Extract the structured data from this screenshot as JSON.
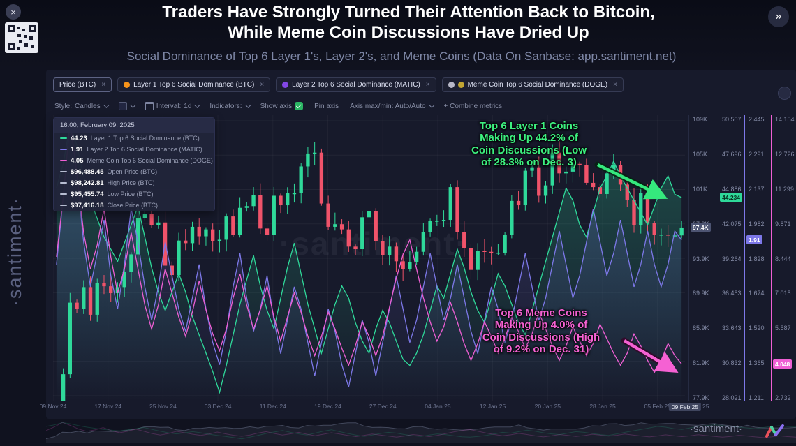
{
  "header": {
    "title": "Traders Have Strongly Turned Their Attention Back to Bitcoin, While Meme Coin Discussions Have Dried Up",
    "subtitle": "Social Dominance of Top 6 Layer 1's, Layer 2's, and Meme Coins (Data On Sanbase: app.santiment.net)",
    "close_label": "×",
    "next_label": "»"
  },
  "watermark": {
    "left": "·santiment·",
    "center": "·santiment·",
    "bottom": "·santiment·"
  },
  "tab_close_label": "×",
  "tabs": [
    {
      "label": "Price (BTC)",
      "badges": []
    },
    {
      "label": "Layer 1 Top 6 Social Dominance (BTC)",
      "badges": [
        "#f7931a"
      ]
    },
    {
      "label": "Layer 2 Top 6 Social Dominance (MATIC)",
      "badges": [
        "#8247e5"
      ]
    },
    {
      "label": "Meme Coin Top 6 Social Dominance (DOGE)",
      "badges": [
        "#b8b8c8",
        "#c2a633"
      ]
    }
  ],
  "toolbar": {
    "style_label": "Style:",
    "style_value": "Candles",
    "interval_label": "Interval:",
    "interval_value": "1d",
    "indicators_label": "Indicators:",
    "show_axis_label": "Show axis",
    "pin_axis_label": "Pin axis",
    "axis_maxmin_label": "Axis max/min: Auto/Auto",
    "combine_label": "+ Combine metrics"
  },
  "legend": {
    "timestamp": "16:00, February 09, 2025",
    "rows": [
      {
        "value": "44.23",
        "label": "Layer 1 Top 6 Social Dominance (BTC)",
        "color": "#2fd99a"
      },
      {
        "value": "1.91",
        "label": "Layer 2 Top 6 Social Dominance (MATIC)",
        "color": "#7d78e8"
      },
      {
        "value": "4.05",
        "label": "Meme Coin Top 6 Social Dominance (DOGE)",
        "color": "#ef5fd4"
      },
      {
        "value": "$96,488.45",
        "label": "Open Price (BTC)",
        "color": "#b7bdd1"
      },
      {
        "value": "$98,242.81",
        "label": "High Price (BTC)",
        "color": "#b7bdd1"
      },
      {
        "value": "$95,455.74",
        "label": "Low Price (BTC)",
        "color": "#b7bdd1"
      },
      {
        "value": "$97,416.18",
        "label": "Close Price (BTC)",
        "color": "#b7bdd1"
      }
    ]
  },
  "annotations": [
    {
      "text": "Top 6 Layer 1 Coins\nMaking Up 44.2% of\nCoin Discussions (Low\nof 28.3% on Dec. 3)",
      "color": "#3df07f"
    },
    {
      "text": "Top 6 Meme Coins\nMaking Up 4.0% of\nCoin Discussions (High\nof 9.2% on Dec. 31)",
      "color": "#f561d3"
    }
  ],
  "chart_data": {
    "type": "candlestick+line",
    "x_tick_labels": [
      "09 Nov 24",
      "17 Nov 24",
      "25 Nov 24",
      "03 Dec 24",
      "11 Dec 24",
      "19 Dec 24",
      "27 Dec 24",
      "04 Jan 25",
      "12 Jan 25",
      "20 Jan 25",
      "28 Jan 25",
      "05 Feb 25"
    ],
    "highlighted_x_label": "09 Feb 25",
    "extra_x_label": "25",
    "axes": [
      {
        "name": "price",
        "color": "#848ba6",
        "min": 77.9,
        "max": 109.8,
        "ticks": [
          "109K",
          "105K",
          "101K",
          "97.9K",
          "93.9K",
          "89.9K",
          "85.9K",
          "81.9K",
          "77.9K"
        ],
        "badge": "97.4K",
        "badge_value": 97.416,
        "badge_bg": "#4d5472",
        "badge_fg": "#ffffff"
      },
      {
        "name": "layer1",
        "color": "#2fd99a",
        "min": 28.021,
        "max": 50.507,
        "ticks": [
          "50.507",
          "47.696",
          "44.886",
          "42.075",
          "39.264",
          "36.453",
          "33.643",
          "30.832",
          "28.021"
        ],
        "badge": "44.234",
        "badge_value": 44.234,
        "badge_bg": "#2fd99a",
        "badge_fg": "#07301f"
      },
      {
        "name": "layer2",
        "color": "#7d78e8",
        "min": 1.211,
        "max": 2.445,
        "ticks": [
          "2.445",
          "2.291",
          "2.137",
          "1.982",
          "1.828",
          "1.674",
          "1.520",
          "1.365",
          "1.211"
        ],
        "badge": "1.91",
        "badge_value": 1.91,
        "badge_bg": "#7d78e8",
        "badge_fg": "#ffffff"
      },
      {
        "name": "meme",
        "color": "#ef5fd4",
        "min": 2.732,
        "max": 14.154,
        "ticks": [
          "14.154",
          "12.726",
          "11.299",
          "9.871",
          "8.444",
          "7.015",
          "5.587",
          "4.160",
          "2.732"
        ],
        "badge": "4.048",
        "badge_value": 4.048,
        "badge_bg": "#ef5fd4",
        "badge_fg": "#ffffff"
      }
    ],
    "series": [
      {
        "name": "Price (BTC)",
        "type": "candle",
        "axis": "price",
        "up_color": "#2fd99a",
        "down_color": "#f0536a",
        "closes": [
          76.7,
          80.4,
          88.7,
          88.0,
          90.5,
          87.3,
          91.0,
          90.6,
          89.8,
          90.5,
          92.3,
          94.3,
          98.5,
          99.0,
          97.7,
          98.0,
          93.0,
          91.9,
          95.9,
          95.6,
          97.5,
          96.4,
          97.2,
          95.8,
          96.0,
          98.7,
          96.6,
          99.7,
          99.9,
          101.2,
          97.3,
          96.6,
          101.1,
          100.0,
          101.4,
          101.4,
          104.5,
          106.0,
          106.1,
          100.2,
          97.5,
          97.8,
          97.2,
          95.2,
          94.9,
          98.6,
          99.3,
          95.8,
          94.2,
          95.2,
          93.5,
          92.6,
          93.4,
          94.6,
          96.9,
          98.2,
          98.2,
          98.3,
          102.1,
          96.9,
          95.0,
          92.5,
          94.7,
          94.6,
          94.5,
          94.5,
          96.6,
          100.5,
          100.0,
          104.0,
          104.4,
          101.1,
          102.3,
          106.1,
          103.7,
          103.9,
          104.8,
          104.7,
          102.6,
          102.1,
          101.3,
          103.7,
          104.7,
          102.4,
          100.6,
          97.7,
          101.4,
          97.9,
          96.6,
          96.6,
          96.5,
          96.5,
          97.416
        ]
      },
      {
        "name": "Layer 1 Top 6 Social Dominance (BTC)",
        "type": "line",
        "axis": "layer1",
        "color": "#2fd99a",
        "fill": true,
        "values": [
          45,
          47,
          50.2,
          48.5,
          46,
          44,
          42.5,
          41,
          40,
          39,
          40.5,
          42,
          43.5,
          41,
          38.5,
          36.5,
          35,
          36.5,
          38,
          36.5,
          34.5,
          33,
          31.5,
          30,
          28.3,
          30.5,
          33,
          35.5,
          37.5,
          39.5,
          37,
          35,
          33.5,
          36,
          38.5,
          40.5,
          38,
          35.5,
          33.5,
          31.5,
          33.5,
          35.5,
          37,
          36,
          34,
          32.5,
          31.5,
          33.5,
          35,
          34,
          32.5,
          31,
          30.5,
          31.5,
          33,
          35,
          37,
          36,
          38,
          40,
          38.5,
          36.5,
          35,
          34,
          36,
          38,
          37,
          35.5,
          34,
          33,
          35,
          37,
          39,
          41,
          43,
          45,
          44,
          42,
          41,
          43,
          45,
          46,
          47.2,
          46,
          45,
          44,
          43,
          42,
          43.5,
          45,
          46,
          44.5,
          44.23
        ]
      },
      {
        "name": "Layer 2 Top 6 Social Dominance (MATIC)",
        "type": "line",
        "axis": "layer2",
        "color": "#7d78e8",
        "fill": true,
        "values": [
          1.8,
          2.1,
          2.45,
          2.2,
          1.9,
          1.7,
          1.85,
          2.0,
          1.75,
          1.6,
          1.8,
          2.05,
          1.9,
          1.7,
          1.55,
          1.7,
          1.9,
          1.75,
          1.6,
          1.5,
          1.65,
          1.8,
          1.6,
          1.45,
          1.35,
          1.5,
          1.7,
          1.85,
          1.65,
          1.5,
          1.6,
          1.75,
          1.55,
          1.4,
          1.55,
          1.7,
          1.6,
          1.45,
          1.3,
          1.45,
          1.6,
          1.5,
          1.35,
          1.25,
          1.4,
          1.55,
          1.45,
          1.3,
          1.45,
          1.6,
          1.75,
          1.6,
          1.45,
          1.55,
          1.7,
          1.85,
          1.7,
          1.55,
          1.65,
          1.8,
          1.65,
          1.5,
          1.4,
          1.55,
          1.7,
          1.6,
          1.45,
          1.55,
          1.7,
          1.85,
          1.7,
          1.55,
          1.65,
          1.8,
          1.95,
          1.8,
          1.65,
          1.75,
          1.9,
          2.05,
          1.9,
          1.75,
          1.85,
          2.0,
          1.85,
          1.7,
          1.8,
          1.95,
          1.8,
          1.7,
          1.8,
          1.95,
          1.91
        ]
      },
      {
        "name": "Meme Coin Top 6 Social Dominance (DOGE)",
        "type": "line",
        "axis": "meme",
        "color": "#ef5fd4",
        "fill": false,
        "values": [
          8.5,
          11.0,
          14.1,
          12.0,
          9.5,
          8.0,
          9.0,
          10.5,
          8.5,
          7.0,
          8.0,
          9.5,
          8.0,
          6.5,
          5.5,
          6.5,
          8.0,
          7.0,
          6.0,
          5.2,
          6.2,
          7.5,
          6.3,
          5.3,
          4.6,
          5.5,
          6.8,
          7.8,
          6.5,
          5.5,
          6.3,
          7.3,
          6.0,
          5.0,
          6.0,
          7.0,
          6.2,
          5.2,
          4.4,
          5.2,
          6.2,
          5.5,
          4.7,
          4.0,
          4.8,
          5.8,
          5.2,
          4.4,
          5.2,
          6.4,
          7.6,
          8.6,
          9.2,
          8.0,
          6.8,
          5.8,
          5.0,
          5.6,
          6.6,
          5.8,
          4.9,
          4.2,
          4.9,
          5.8,
          5.2,
          4.5,
          5.1,
          6.0,
          5.4,
          4.7,
          5.3,
          6.2,
          5.5,
          4.8,
          4.2,
          4.8,
          5.6,
          5.0,
          4.4,
          4.9,
          5.7,
          5.1,
          4.5,
          4.0,
          4.5,
          5.3,
          4.8,
          4.2,
          3.7,
          4.2,
          4.9,
          4.4,
          4.05
        ]
      }
    ]
  }
}
